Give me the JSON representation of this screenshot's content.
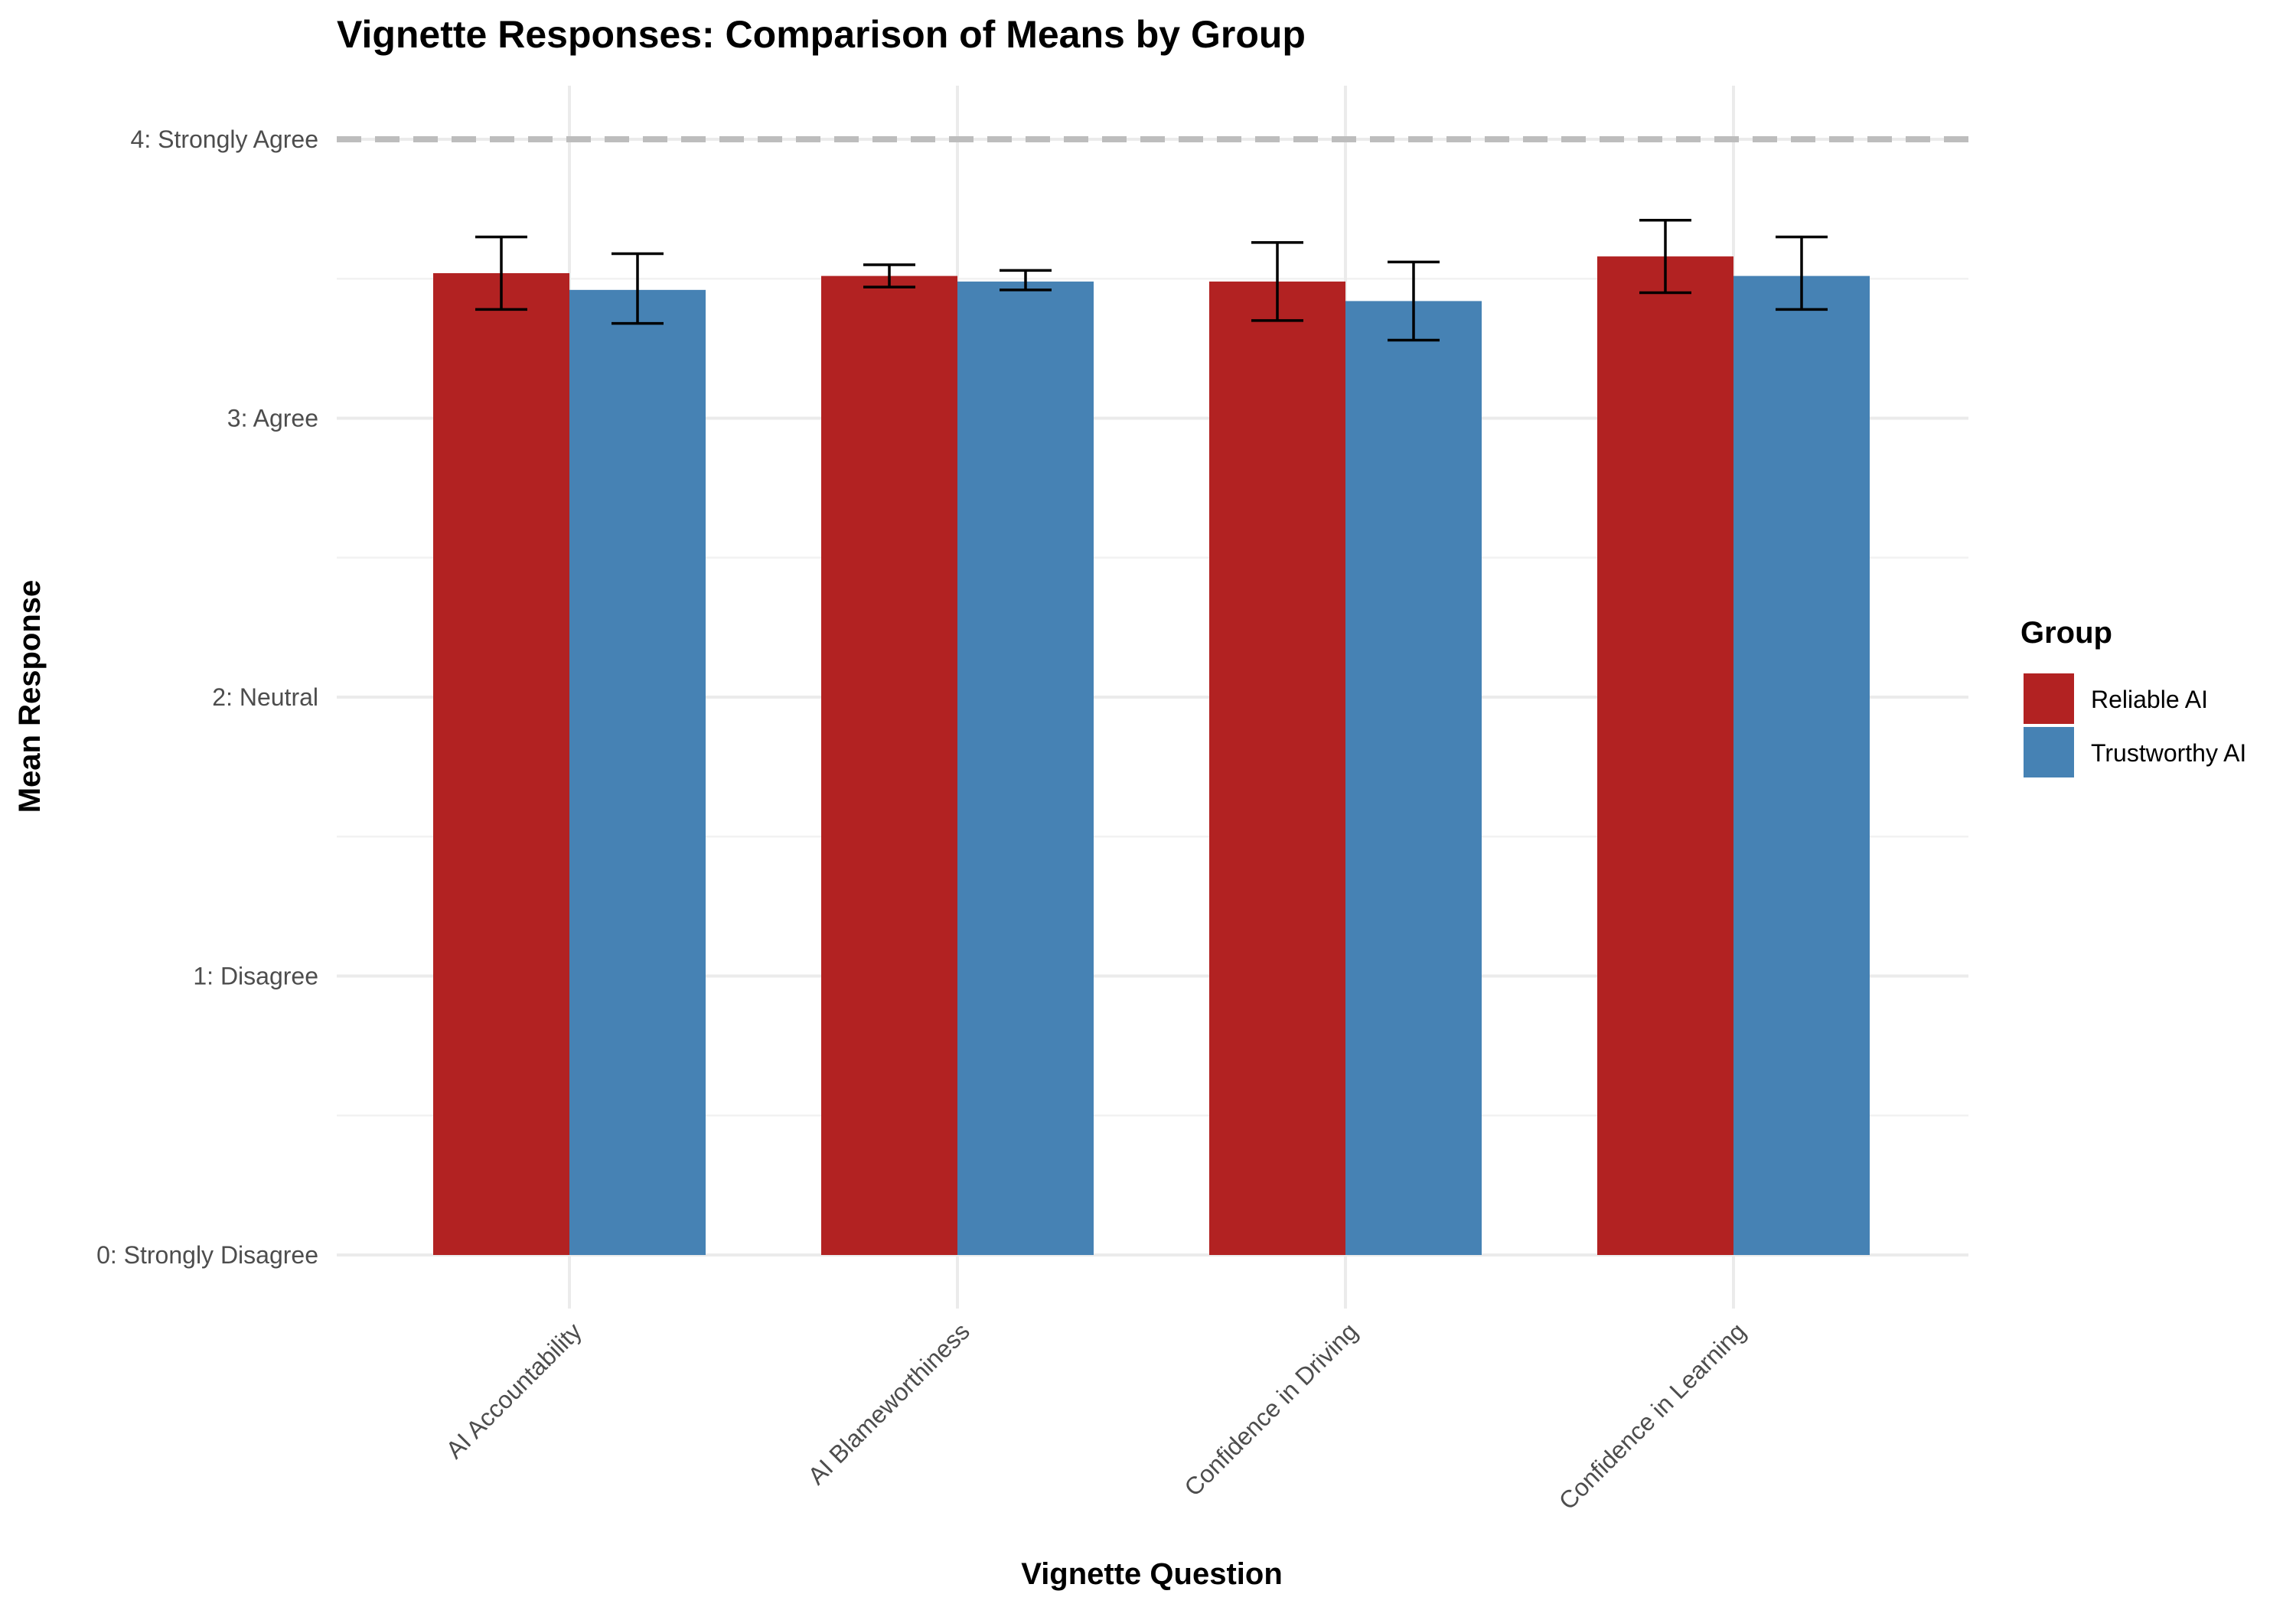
{
  "chart_data": {
    "type": "bar",
    "title": "Vignette Responses: Comparison of Means by Group",
    "xlabel": "Vignette Question",
    "ylabel": "Mean Response",
    "ylim": [
      0,
      4
    ],
    "y_ticks": [
      {
        "value": 0,
        "label": "0: Strongly Disagree"
      },
      {
        "value": 1,
        "label": "1: Disagree"
      },
      {
        "value": 2,
        "label": "2: Neutral"
      },
      {
        "value": 3,
        "label": "3: Agree"
      },
      {
        "value": 4,
        "label": "4: Strongly Agree"
      }
    ],
    "reference_line": {
      "y": 4,
      "style": "dashed",
      "color": "#bdbdbd"
    },
    "categories": [
      "AI Accountability",
      "AI Blameworthiness",
      "Confidence in Driving",
      "Confidence in Learning"
    ],
    "series": [
      {
        "name": "Reliable AI",
        "color": "#b22222",
        "values": [
          3.52,
          3.51,
          3.49,
          3.58
        ],
        "error_low": [
          3.39,
          3.47,
          3.35,
          3.45
        ],
        "error_high": [
          3.65,
          3.55,
          3.63,
          3.71
        ]
      },
      {
        "name": "Trustworthy AI",
        "color": "#4682b4",
        "values": [
          3.46,
          3.49,
          3.42,
          3.51
        ],
        "error_low": [
          3.34,
          3.46,
          3.28,
          3.39
        ],
        "error_high": [
          3.59,
          3.53,
          3.56,
          3.65
        ]
      }
    ],
    "legend": {
      "title": "Group",
      "position": "right"
    },
    "grid": true
  }
}
